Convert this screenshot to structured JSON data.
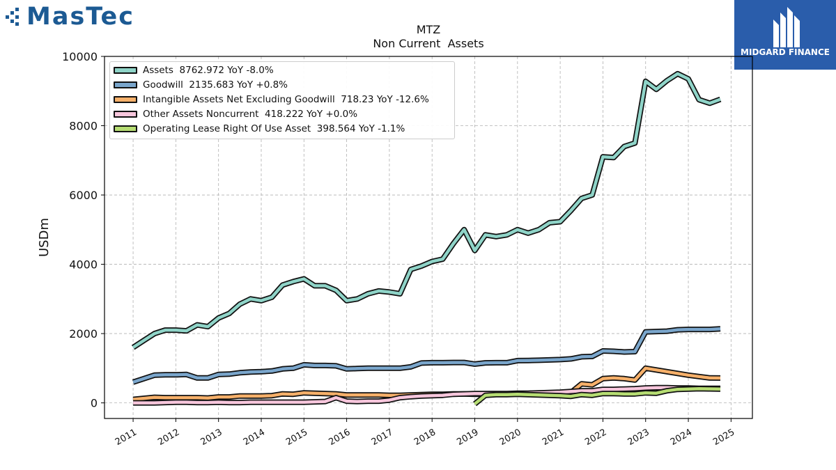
{
  "brand": {
    "name": "MasTec"
  },
  "sponsor": {
    "name": "MIDGARD FINANCE"
  },
  "colors": {
    "assets": "#8fd4c8",
    "goodwill": "#7aa6cc",
    "intangible": "#f6b06a",
    "other": "#f7c6dc",
    "lease": "#b6dd73",
    "outline": "#111111"
  },
  "chart_data": {
    "type": "line",
    "title": "MTZ",
    "subtitle": "Non Current  Assets",
    "ylabel": "USDm",
    "xlabel": "",
    "xlim": [
      2010.33,
      2025.5
    ],
    "ylim": [
      -450,
      10000
    ],
    "yticks": [
      0,
      2000,
      4000,
      6000,
      8000,
      10000
    ],
    "xticks": [
      "2011",
      "2012",
      "2013",
      "2014",
      "2015",
      "2016",
      "2017",
      "2018",
      "2019",
      "2020",
      "2021",
      "2022",
      "2023",
      "2024",
      "2025"
    ],
    "grid": true,
    "legend_position": "top-left",
    "series": [
      {
        "key": "assets",
        "legend": "Assets  8762.972 YoY -8.0%",
        "color": "#8fd4c8",
        "x": [
          2011.0,
          2011.25,
          2011.5,
          2011.75,
          2012.0,
          2012.25,
          2012.5,
          2012.75,
          2013.0,
          2013.25,
          2013.5,
          2013.75,
          2014.0,
          2014.25,
          2014.5,
          2014.75,
          2015.0,
          2015.25,
          2015.5,
          2015.75,
          2016.0,
          2016.25,
          2016.5,
          2016.75,
          2017.0,
          2017.25,
          2017.5,
          2017.75,
          2018.0,
          2018.25,
          2018.5,
          2018.75,
          2019.0,
          2019.25,
          2019.5,
          2019.75,
          2020.0,
          2020.25,
          2020.5,
          2020.75,
          2021.0,
          2021.25,
          2021.5,
          2021.75,
          2022.0,
          2022.25,
          2022.5,
          2022.75,
          2023.0,
          2023.25,
          2023.5,
          2023.75,
          2024.0,
          2024.25,
          2024.5,
          2024.75
        ],
        "y": [
          1600,
          1800,
          2000,
          2100,
          2100,
          2080,
          2250,
          2200,
          2450,
          2580,
          2850,
          3000,
          2950,
          3050,
          3400,
          3500,
          3580,
          3380,
          3380,
          3250,
          2950,
          3000,
          3150,
          3230,
          3200,
          3150,
          3850,
          3950,
          4080,
          4150,
          4600,
          5000,
          4400,
          4850,
          4800,
          4850,
          5000,
          4900,
          5000,
          5200,
          5230,
          5550,
          5900,
          6000,
          7100,
          7080,
          7400,
          7500,
          9280,
          9050,
          9300,
          9500,
          9350,
          8750,
          8650,
          8762.972
        ]
      },
      {
        "key": "goodwill",
        "legend": "Goodwill  2135.683 YoY +0.8%",
        "color": "#7aa6cc",
        "x": [
          2011.0,
          2011.25,
          2011.5,
          2011.75,
          2012.0,
          2012.25,
          2012.5,
          2012.75,
          2013.0,
          2013.25,
          2013.5,
          2013.75,
          2014.0,
          2014.25,
          2014.5,
          2014.75,
          2015.0,
          2015.25,
          2015.5,
          2015.75,
          2016.0,
          2016.25,
          2016.5,
          2016.75,
          2017.0,
          2017.25,
          2017.5,
          2017.75,
          2018.0,
          2018.25,
          2018.5,
          2018.75,
          2019.0,
          2019.25,
          2019.5,
          2019.75,
          2020.0,
          2020.25,
          2020.5,
          2020.75,
          2021.0,
          2021.25,
          2021.5,
          2021.75,
          2022.0,
          2022.25,
          2022.5,
          2022.75,
          2023.0,
          2023.25,
          2023.5,
          2023.75,
          2024.0,
          2024.25,
          2024.5,
          2024.75
        ],
        "y": [
          600,
          700,
          800,
          810,
          810,
          820,
          720,
          720,
          820,
          830,
          870,
          890,
          900,
          920,
          980,
          1000,
          1100,
          1080,
          1080,
          1070,
          980,
          990,
          1000,
          1000,
          1000,
          1000,
          1040,
          1150,
          1160,
          1160,
          1165,
          1165,
          1120,
          1155,
          1160,
          1160,
          1220,
          1225,
          1230,
          1240,
          1250,
          1270,
          1330,
          1340,
          1500,
          1490,
          1470,
          1480,
          2050,
          2060,
          2070,
          2110,
          2120,
          2120,
          2120,
          2135.683
        ]
      },
      {
        "key": "intangible",
        "legend": "Intangible Assets Net Excluding Goodwill  718.23 YoY -12.6%",
        "color": "#f6b06a",
        "x": [
          2011.0,
          2011.25,
          2011.5,
          2011.75,
          2012.0,
          2012.25,
          2012.5,
          2012.75,
          2013.0,
          2013.25,
          2013.5,
          2013.75,
          2014.0,
          2014.25,
          2014.5,
          2014.75,
          2015.0,
          2015.25,
          2015.5,
          2015.75,
          2016.0,
          2016.25,
          2016.5,
          2016.75,
          2017.0,
          2017.25,
          2017.5,
          2017.75,
          2018.0,
          2018.25,
          2018.5,
          2018.75,
          2019.0,
          2019.25,
          2019.5,
          2019.75,
          2020.0,
          2020.25,
          2020.5,
          2020.75,
          2021.0,
          2021.25,
          2021.5,
          2021.75,
          2022.0,
          2022.25,
          2022.5,
          2022.75,
          2023.0,
          2023.25,
          2023.5,
          2023.75,
          2024.0,
          2024.25,
          2024.5,
          2024.75
        ],
        "y": [
          100,
          130,
          160,
          150,
          150,
          150,
          150,
          140,
          170,
          170,
          200,
          200,
          200,
          210,
          260,
          250,
          290,
          280,
          270,
          260,
          230,
          230,
          230,
          230,
          220,
          220,
          230,
          240,
          250,
          250,
          260,
          260,
          250,
          250,
          250,
          250,
          260,
          260,
          270,
          270,
          280,
          300,
          550,
          520,
          700,
          720,
          700,
          660,
          1000,
          950,
          900,
          850,
          800,
          760,
          720,
          718.23
        ]
      },
      {
        "key": "other",
        "legend": "Other Assets Noncurrent  418.222 YoY +0.0%",
        "color": "#f7c6dc",
        "x": [
          2011.0,
          2011.25,
          2011.5,
          2011.75,
          2012.0,
          2012.25,
          2012.5,
          2012.75,
          2013.0,
          2013.25,
          2013.5,
          2013.75,
          2014.0,
          2014.25,
          2014.5,
          2014.75,
          2015.0,
          2015.25,
          2015.5,
          2015.75,
          2016.0,
          2016.25,
          2016.5,
          2016.75,
          2017.0,
          2017.25,
          2017.5,
          2017.75,
          2018.0,
          2018.25,
          2018.5,
          2018.75,
          2019.0,
          2019.25,
          2019.5,
          2019.75,
          2020.0,
          2020.25,
          2020.5,
          2020.75,
          2021.0,
          2021.25,
          2021.5,
          2021.75,
          2022.0,
          2022.25,
          2022.5,
          2022.75,
          2023.0,
          2023.25,
          2023.5,
          2023.75,
          2024.0,
          2024.25,
          2024.5,
          2024.75
        ],
        "y": [
          0,
          0,
          0,
          10,
          20,
          20,
          10,
          10,
          20,
          10,
          10,
          20,
          20,
          20,
          20,
          20,
          20,
          30,
          40,
          150,
          50,
          40,
          50,
          50,
          80,
          150,
          180,
          200,
          210,
          220,
          250,
          260,
          270,
          270,
          270,
          270,
          280,
          280,
          290,
          300,
          310,
          330,
          350,
          350,
          390,
          390,
          400,
          410,
          430,
          440,
          440,
          430,
          430,
          420,
          420,
          418.222
        ]
      },
      {
        "key": "lease",
        "legend": "Operating Lease Right Of Use Asset  398.564 YoY -1.1%",
        "color": "#b6dd73",
        "x": [
          2019.0,
          2019.25,
          2019.5,
          2019.75,
          2020.0,
          2020.25,
          2020.5,
          2020.75,
          2021.0,
          2021.25,
          2021.5,
          2021.75,
          2022.0,
          2022.25,
          2022.5,
          2022.75,
          2023.0,
          2023.25,
          2023.5,
          2023.75,
          2024.0,
          2024.25,
          2024.5,
          2024.75
        ],
        "y": [
          -30,
          220,
          240,
          240,
          250,
          240,
          230,
          220,
          210,
          190,
          240,
          220,
          270,
          270,
          260,
          260,
          290,
          280,
          350,
          390,
          400,
          410,
          405,
          398.564
        ]
      }
    ]
  }
}
